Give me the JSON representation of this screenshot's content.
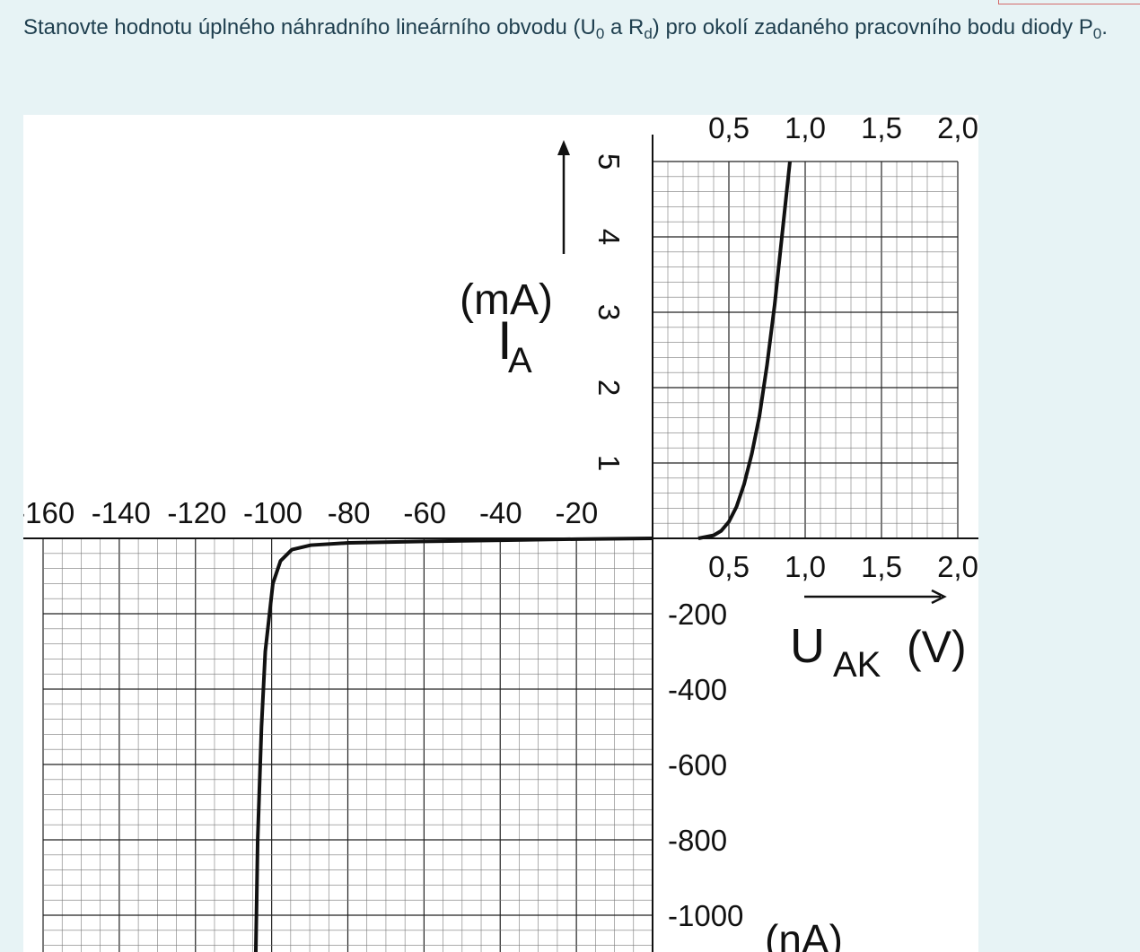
{
  "question": {
    "text_before_u": "Stanovte hodnotu úplného náhradního lineárního obvodu (U",
    "u_sub": "0",
    "text_between": " a R",
    "r_sub": "d",
    "text_after_r": ") pro okolí zadaného pracovního bodu diody P",
    "p_sub": "0",
    "text_end": "."
  },
  "chart_data": {
    "type": "line",
    "title": "",
    "ylabel_forward": "I",
    "ylabel_forward_sub": "A",
    "ylabel_forward_unit": "(mA)",
    "xlabel_forward": "U",
    "xlabel_forward_sub": "AK",
    "xlabel_forward_unit": "(V)",
    "ylabel_reverse_unit": "(nA)",
    "forward_x_ticks": [
      "0,5",
      "1,0",
      "1,5",
      "2,0"
    ],
    "forward_x_tick_values": [
      0.5,
      1.0,
      1.5,
      2.0
    ],
    "forward_y_ticks": [
      "1",
      "2",
      "3",
      "4",
      "5"
    ],
    "forward_y_tick_values": [
      1,
      2,
      3,
      4,
      5
    ],
    "reverse_x_ticks": [
      "-160",
      "-140",
      "-120",
      "-100",
      "-80",
      "-60",
      "-40",
      "-20"
    ],
    "reverse_x_tick_values": [
      -160,
      -140,
      -120,
      -100,
      -80,
      -60,
      -40,
      -20
    ],
    "reverse_y_ticks": [
      "-200",
      "-400",
      "-600",
      "-800",
      "-1000"
    ],
    "reverse_y_tick_values": [
      -200,
      -400,
      -600,
      -800,
      -1000
    ],
    "forward_xlim": [
      0,
      2.0
    ],
    "forward_ylim": [
      0,
      5
    ],
    "reverse_xlim": [
      -160,
      0
    ],
    "reverse_ylim": [
      -1100,
      0
    ],
    "grid": true,
    "series": [
      {
        "segment": "forward",
        "x_unit": "V",
        "y_unit": "mA",
        "x": [
          0.3,
          0.4,
          0.45,
          0.5,
          0.55,
          0.6,
          0.65,
          0.7,
          0.75,
          0.8,
          0.85,
          0.9
        ],
        "y": [
          0.0,
          0.04,
          0.1,
          0.22,
          0.42,
          0.72,
          1.12,
          1.62,
          2.3,
          3.1,
          4.05,
          5.0
        ]
      },
      {
        "segment": "reverse",
        "x_unit": "V",
        "y_unit": "nA",
        "x": [
          0,
          -20,
          -40,
          -60,
          -80,
          -90,
          -95,
          -98,
          -100,
          -102,
          -103,
          -104,
          -104.5
        ],
        "y": [
          0,
          -2,
          -5,
          -8,
          -12,
          -18,
          -30,
          -60,
          -120,
          -300,
          -500,
          -800,
          -1100
        ]
      }
    ],
    "colors": {
      "curve": "#111111",
      "grid_minor": "#7a7a7a",
      "grid_major": "#222222"
    }
  }
}
